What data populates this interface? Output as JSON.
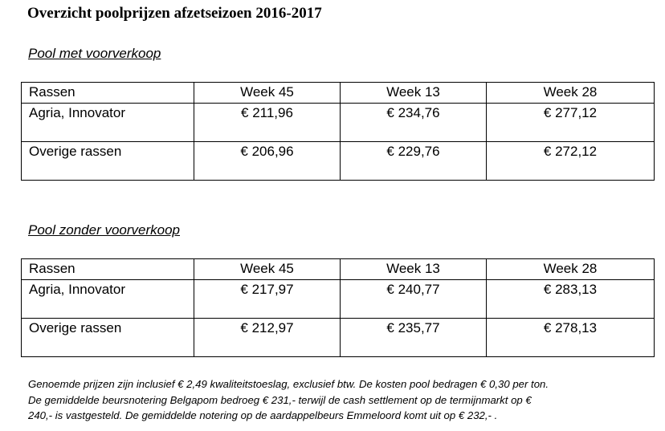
{
  "title": "Overzicht poolprijzen afzetseizoen 2016-2017",
  "sections": [
    {
      "heading": "Pool met voorverkoop",
      "table": {
        "header": [
          "Rassen",
          "Week 45",
          "Week 13",
          "Week 28"
        ],
        "rows": [
          [
            "Agria, Innovator",
            "€ 211,96",
            "€ 234,76",
            "€ 277,12"
          ],
          [
            "Overige rassen",
            "€ 206,96",
            "€ 229,76",
            "€ 272,12"
          ]
        ]
      }
    },
    {
      "heading": "Pool zonder voorverkoop",
      "table": {
        "header": [
          "Rassen",
          "Week 45",
          "Week 13",
          "Week 28"
        ],
        "rows": [
          [
            "Agria, Innovator",
            "€ 217,97",
            "€ 240,77",
            "€ 283,13"
          ],
          [
            "Overige rassen",
            "€ 212,97",
            "€ 235,77",
            "€ 278,13"
          ]
        ]
      }
    }
  ],
  "footnote": [
    "Genoemde prijzen zijn inclusief € 2,49 kwaliteitstoeslag, exclusief btw. De kosten pool bedragen € 0,30 per ton.",
    "De gemiddelde beursnotering Belgapom bedroeg € 231,- terwijl de cash settlement op de termijnmarkt op €",
    "240,- is vastgesteld. De gemiddelde notering op de aardappelbeurs Emmeloord komt uit op € 232,- ."
  ]
}
